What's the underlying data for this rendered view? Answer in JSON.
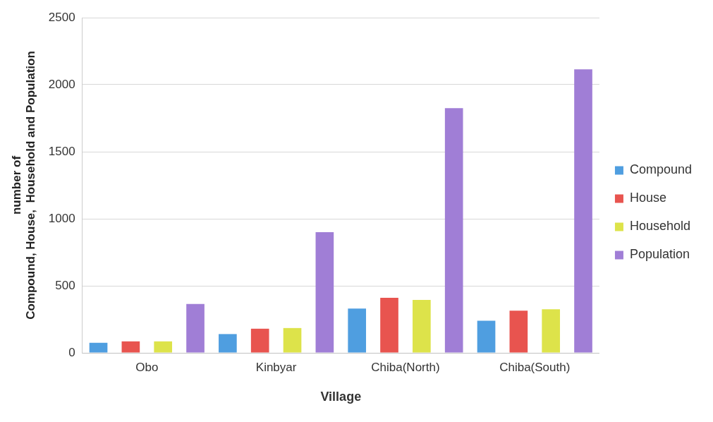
{
  "chart_data": {
    "type": "bar",
    "xlabel": "Village",
    "ylabel": "number of\nCompound, House,  Household and Population",
    "categories": [
      "Obo",
      "Kinbyar",
      "Chiba(North)",
      "Chiba(South)"
    ],
    "series": [
      {
        "name": "Compound",
        "color": "#4f9ee0",
        "values": [
          75,
          140,
          330,
          240
        ]
      },
      {
        "name": "House",
        "color": "#e8544f",
        "values": [
          85,
          180,
          410,
          315
        ]
      },
      {
        "name": "Household",
        "color": "#dde34a",
        "values": [
          85,
          185,
          395,
          325
        ]
      },
      {
        "name": "Population",
        "color": "#a07ed6",
        "values": [
          365,
          900,
          1825,
          2115
        ]
      }
    ],
    "ylim": [
      0,
      2500
    ],
    "yticks": [
      0,
      500,
      1000,
      1500,
      2000,
      2500
    ],
    "grid": "y",
    "legend": "right"
  }
}
